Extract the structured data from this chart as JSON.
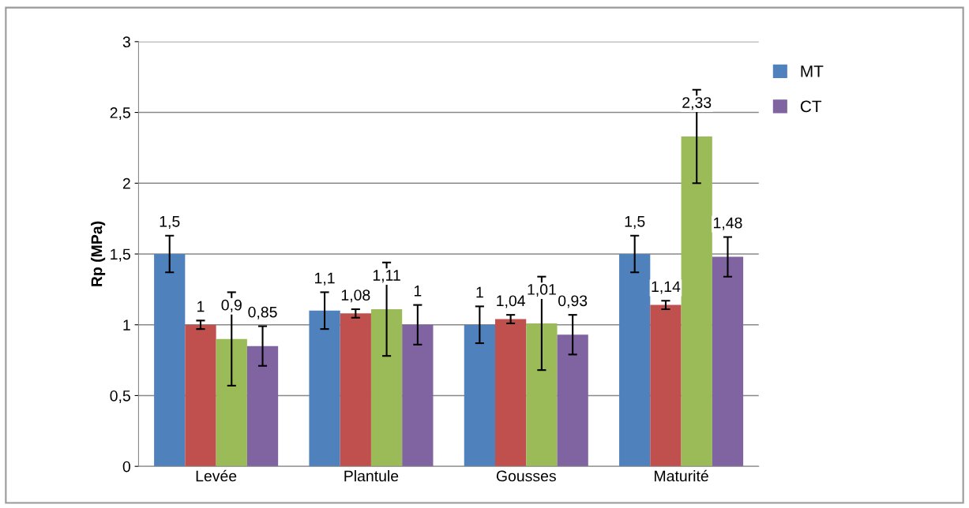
{
  "chart_data": {
    "type": "bar",
    "ylabel": "Rp (MPa)",
    "categories": [
      "Levée",
      "Plantule",
      "Gousses",
      "Maturité"
    ],
    "series": [
      {
        "name": "MT",
        "color": "#4f81bd",
        "values": [
          1.5,
          1.1,
          1,
          1.5
        ],
        "errors": [
          0.13,
          0.13,
          0.13,
          0.13
        ],
        "value_labels": [
          "1,5",
          "1,1",
          "1",
          "1,5"
        ]
      },
      {
        "color": "#c0504d",
        "values": [
          1,
          1.08,
          1.04,
          1.14
        ],
        "errors": [
          0.03,
          0.03,
          0.03,
          0.03
        ],
        "value_labels": [
          "1",
          "1,08",
          "1,04",
          "1,14"
        ]
      },
      {
        "color": "#9bbb59",
        "values": [
          0.9,
          1.11,
          1.01,
          2.33
        ],
        "errors": [
          0.33,
          0.33,
          0.33,
          0.33
        ],
        "value_labels": [
          "0,9",
          "1,11",
          "1,01",
          "2,33"
        ]
      },
      {
        "name": "CT",
        "color": "#8064a2",
        "values": [
          0.85,
          1,
          0.93,
          1.48
        ],
        "errors": [
          0.14,
          0.14,
          0.14,
          0.14
        ],
        "value_labels": [
          "0,85",
          "1",
          "0,93",
          "1,48"
        ]
      }
    ],
    "ylim": [
      0,
      3
    ],
    "yticks": [
      0,
      {
        "value": 0.5,
        "label": "0,5"
      },
      1,
      {
        "value": 1.5,
        "label": "1,5"
      },
      2,
      {
        "value": 2.5,
        "label": "2,5"
      },
      3
    ],
    "grid": "y",
    "legend": "right"
  }
}
